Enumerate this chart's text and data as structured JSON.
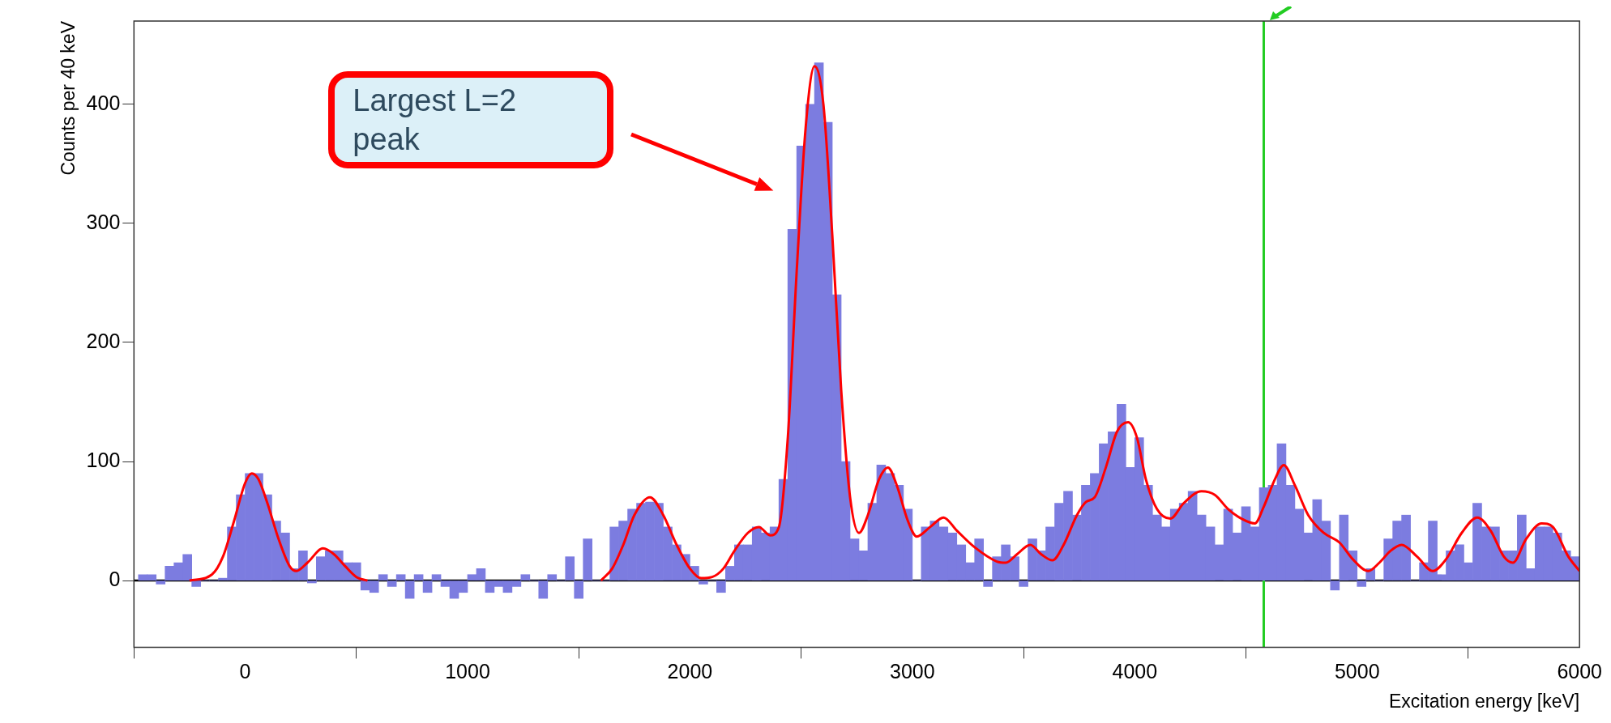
{
  "chart_data": {
    "type": "histogram",
    "xlabel": "Excitation energy [keV]",
    "ylabel": "Counts per 40 keV",
    "xlim": [
      -500,
      6000
    ],
    "xticks": [
      0,
      1000,
      2000,
      3000,
      4000,
      5000,
      6000
    ],
    "ylim": [
      -56,
      470
    ],
    "yticks": [
      0,
      100,
      200,
      300,
      400
    ],
    "grid": false,
    "legend": false,
    "color": "#7c7ce0",
    "bins": [
      -480,
      -440,
      -400,
      -360,
      -320,
      -280,
      -240,
      -200,
      -160,
      -120,
      -80,
      -40,
      0,
      40,
      80,
      120,
      160,
      200,
      240,
      280,
      320,
      360,
      400,
      440,
      480,
      520,
      560,
      600,
      640,
      680,
      720,
      760,
      800,
      840,
      880,
      920,
      960,
      1000,
      1040,
      1080,
      1120,
      1160,
      1200,
      1240,
      1280,
      1320,
      1360,
      1400,
      1440,
      1480,
      1520,
      1560,
      1600,
      1640,
      1680,
      1720,
      1760,
      1800,
      1840,
      1880,
      1920,
      1960,
      2000,
      2040,
      2080,
      2120,
      2160,
      2200,
      2240,
      2280,
      2320,
      2360,
      2400,
      2440,
      2480,
      2520,
      2560,
      2600,
      2640,
      2680,
      2720,
      2760,
      2800,
      2840,
      2880,
      2920,
      2960,
      3000,
      3040,
      3080,
      3120,
      3160,
      3200,
      3240,
      3280,
      3320,
      3360,
      3400,
      3440,
      3480,
      3520,
      3560,
      3600,
      3640,
      3680,
      3720,
      3760,
      3800,
      3840,
      3880,
      3920,
      3960,
      4000,
      4040,
      4080,
      4120,
      4160,
      4200,
      4240,
      4280,
      4320,
      4360,
      4400,
      4440,
      4480,
      4520,
      4560,
      4600,
      4640,
      4680,
      4720,
      4760,
      4800,
      4840,
      4880,
      4920,
      4960,
      5000,
      5040,
      5080,
      5120,
      5160,
      5200,
      5240,
      5280,
      5320,
      5360,
      5400,
      5440,
      5480,
      5520,
      5560,
      5600,
      5640,
      5680,
      5720,
      5760,
      5800,
      5840,
      5880,
      5920,
      5960,
      6000
    ],
    "values": [
      5,
      5,
      -3,
      12,
      15,
      22,
      -5,
      0,
      0,
      2,
      45,
      72,
      90,
      90,
      72,
      50,
      40,
      10,
      25,
      -2,
      20,
      25,
      25,
      15,
      15,
      -8,
      -10,
      5,
      -5,
      5,
      -15,
      5,
      -10,
      5,
      -5,
      -15,
      -10,
      5,
      10,
      -10,
      -5,
      -10,
      -5,
      5,
      0,
      -15,
      5,
      0,
      20,
      -15,
      35,
      0,
      0,
      45,
      50,
      60,
      65,
      66,
      65,
      45,
      30,
      22,
      12,
      -3,
      0,
      -10,
      12,
      30,
      30,
      45,
      40,
      45,
      85,
      295,
      365,
      400,
      435,
      385,
      240,
      100,
      35,
      25,
      65,
      97,
      90,
      80,
      60,
      0,
      45,
      50,
      45,
      40,
      30,
      15,
      35,
      -5,
      20,
      30,
      20,
      -5,
      35,
      25,
      45,
      65,
      75,
      55,
      80,
      90,
      115,
      125,
      148,
      95,
      120,
      80,
      55,
      45,
      60,
      65,
      75,
      55,
      45,
      30,
      60,
      40,
      62,
      45,
      78,
      80,
      115,
      80,
      60,
      40,
      68,
      50,
      -8,
      55,
      25,
      -5,
      10,
      0,
      35,
      50,
      55,
      0,
      15,
      50,
      5,
      25,
      30,
      15,
      65,
      45,
      45,
      25,
      25,
      55,
      10,
      45,
      45,
      40,
      25,
      20
    ],
    "series": [
      {
        "type": "line",
        "color": "#ff0000",
        "x": [
          -250,
          -150,
          -100,
          -50,
          0,
          30,
          60,
          100,
          150,
          200,
          230,
          280,
          350,
          400,
          450,
          500,
          550,
          1000,
          1600,
          1650,
          1700,
          1750,
          1820,
          1880,
          1940,
          2000,
          2050,
          2100,
          2150,
          2200,
          2260,
          2310,
          2360,
          2400,
          2440,
          2480,
          2520,
          2560,
          2600,
          2640,
          2680,
          2720,
          2760,
          2800,
          2850,
          2890,
          2930,
          2980,
          3020,
          3080,
          3140,
          3200,
          3280,
          3380,
          3420,
          3470,
          3530,
          3580,
          3630,
          3680,
          3740,
          3780,
          3820,
          3870,
          3920,
          3970,
          4010,
          4050,
          4100,
          4160,
          4220,
          4300,
          4360,
          4420,
          4480,
          4540,
          4580,
          4630,
          4670,
          4720,
          4780,
          4850,
          4920,
          4980,
          5050,
          5100,
          5150,
          5200,
          5270,
          5340,
          5400,
          5470,
          5540,
          5600,
          5660,
          5700,
          5760,
          5830,
          5880,
          5950,
          6000
        ],
        "values": [
          0,
          5,
          20,
          50,
          82,
          90,
          85,
          65,
          35,
          12,
          8,
          15,
          27,
          22,
          12,
          3,
          0,
          null,
          0,
          10,
          30,
          55,
          70,
          55,
          30,
          10,
          2,
          3,
          10,
          25,
          40,
          45,
          38,
          45,
          120,
          260,
          380,
          432,
          400,
          290,
          160,
          70,
          40,
          55,
          85,
          95,
          80,
          50,
          37,
          45,
          53,
          42,
          28,
          16,
          15,
          22,
          30,
          22,
          17,
          30,
          55,
          66,
          70,
          95,
          125,
          133,
          120,
          85,
          60,
          52,
          65,
          75,
          72,
          60,
          52,
          48,
          62,
          85,
          97,
          80,
          55,
          40,
          32,
          18,
          8,
          15,
          25,
          30,
          20,
          8,
          18,
          40,
          53,
          42,
          20,
          15,
          35,
          48,
          45,
          20,
          8
        ]
      }
    ],
    "ref_lines": [
      {
        "axis": "y",
        "value": 0,
        "color": "#000000"
      },
      {
        "axis": "x",
        "value": 4580,
        "color": "#22cc22"
      }
    ],
    "annotations": [
      "Largest L=2 peak"
    ]
  }
}
